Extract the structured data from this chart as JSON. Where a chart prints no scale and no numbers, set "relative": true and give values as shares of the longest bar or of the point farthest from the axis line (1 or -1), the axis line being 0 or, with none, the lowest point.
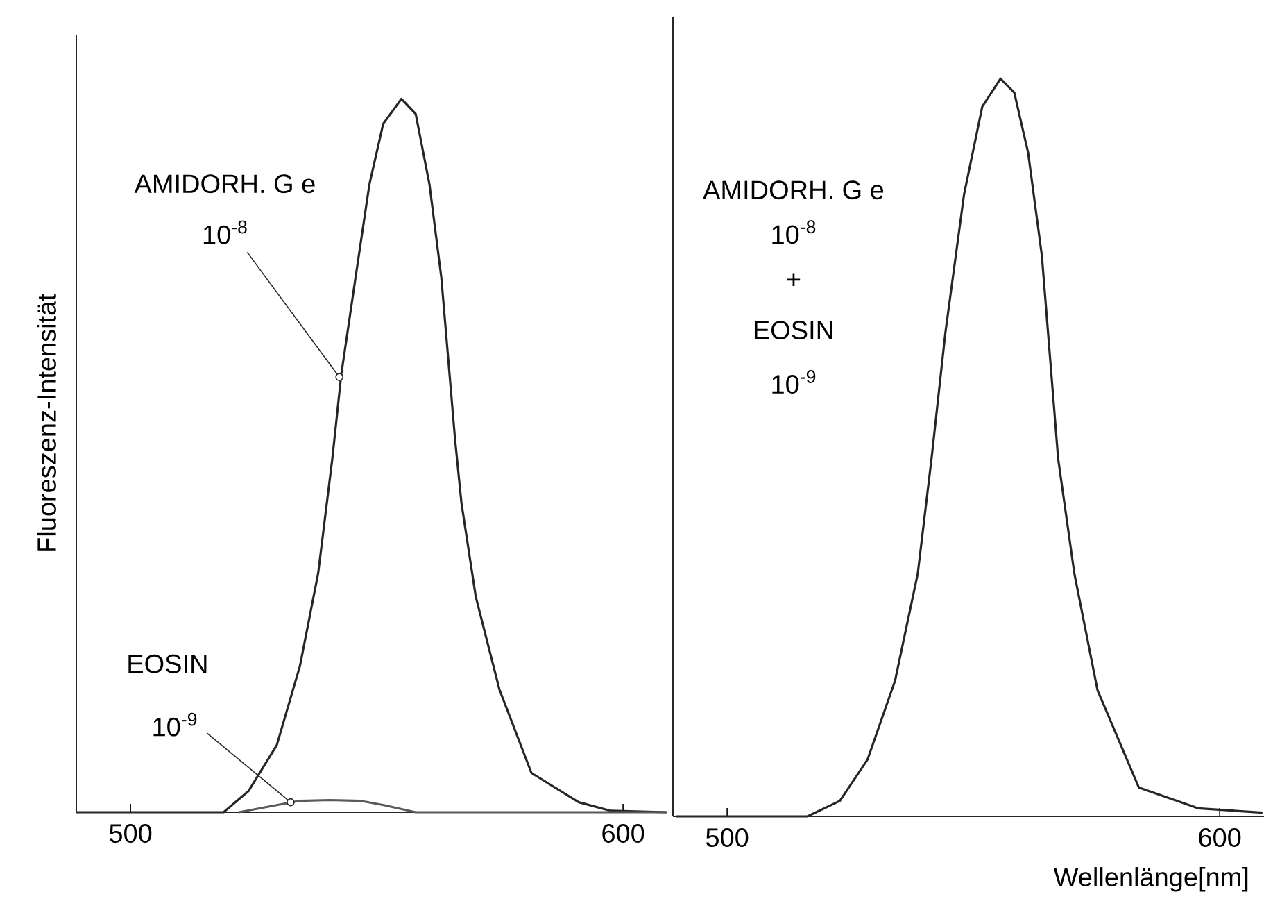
{
  "chart_data": [
    {
      "type": "line",
      "relative": true,
      "xlim": [
        489,
        609
      ],
      "xticks": [
        500,
        600
      ],
      "ylabel": "Fluoreszenz-Intensität",
      "annotations": [
        "AMIDORH. G e",
        {
          "text": "10$^{-8}$",
          "x": 542.4,
          "y": 0.61
        },
        "EOSIN",
        {
          "text": "10$^{-9}$",
          "x": 532.5,
          "y": 0.014
        }
      ],
      "series": [
        {
          "color": "#262626",
          "x": [
            489,
            518.9,
            524,
            529.7,
            534.4,
            538.1,
            541,
            542.8,
            545.7,
            548.5,
            551.3,
            555,
            557.9,
            560.7,
            563.1,
            565.9,
            567.2,
            570.1,
            574.9,
            581.4,
            591,
            597.5,
            608.8
          ],
          "values": [
            0,
            0,
            0.03,
            0.094,
            0.205,
            0.335,
            0.497,
            0.614,
            0.75,
            0.88,
            0.965,
            1.0,
            0.979,
            0.88,
            0.75,
            0.522,
            0.433,
            0.302,
            0.172,
            0.055,
            0.014,
            0.002,
            0
          ]
        },
        {
          "color": "#5a5a5a",
          "x": [
            522,
            529.7,
            534.4,
            540.5,
            546.6,
            551.4,
            557.9,
            608.8
          ],
          "values": [
            0,
            0.01,
            0.016,
            0.017,
            0.016,
            0.01,
            0,
            0
          ]
        }
      ]
    },
    {
      "type": "line",
      "relative": true,
      "xlim": [
        489,
        609
      ],
      "xticks": [
        500,
        600
      ],
      "xlabel": "Wellenlänge[nm]",
      "annotations": [
        "AMIDORH. G e",
        "10$^{-8}$",
        "+",
        "EOSIN",
        "10$^{-9}$"
      ],
      "series": [
        {
          "color": "#262626",
          "x": [
            489.7,
            516.3,
            522.9,
            528.5,
            534.1,
            538.7,
            541.5,
            544.3,
            548.1,
            551.8,
            555.5,
            558.3,
            561.1,
            563.9,
            567.2,
            570.5,
            575.2,
            583.6,
            595.6,
            608.7
          ],
          "values": [
            0,
            0,
            0.021,
            0.077,
            0.184,
            0.329,
            0.485,
            0.655,
            0.843,
            0.962,
            1.0,
            0.981,
            0.9,
            0.76,
            0.485,
            0.329,
            0.171,
            0.039,
            0.011,
            0.005
          ]
        }
      ]
    }
  ]
}
